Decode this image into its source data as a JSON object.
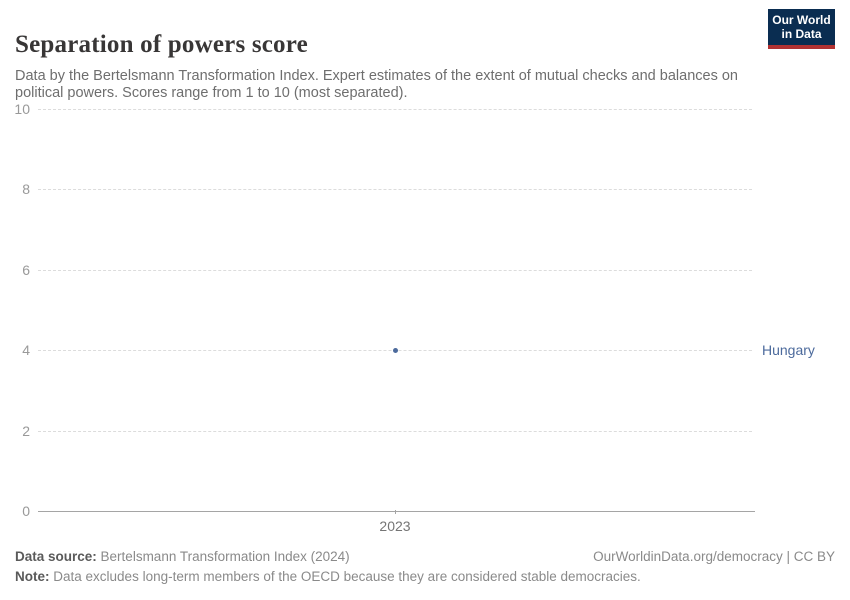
{
  "colors": {
    "accent": "#4c6a9c",
    "grid": "#dcdcdc",
    "axis": "#a5a5a5",
    "ytick_text": "#999999",
    "xtick_text": "#757575",
    "logo_bg": "#0a2d51",
    "logo_stripe": "#b13232"
  },
  "header": {
    "title": "Separation of powers score",
    "subtitle": "Data by the Bertelsmann Transformation Index. Expert estimates of the extent of mutual checks and balances on political powers. Scores range from 1 to 10 (most separated).",
    "logo": {
      "line1": "Our World",
      "line2": "in Data"
    }
  },
  "chart_data": {
    "type": "scatter",
    "title": "Separation of powers score",
    "xlabel": "",
    "ylabel": "",
    "ylim": [
      0,
      10
    ],
    "yticks": [
      0,
      2,
      4,
      6,
      8,
      10
    ],
    "xticks": [
      {
        "label": "2023",
        "frac": 0.5
      }
    ],
    "grid": "horizontal-dashed",
    "legend": "entity-label-right",
    "series": [
      {
        "name": "Hungary",
        "color": "#4c6a9c",
        "points": [
          {
            "x": 2023,
            "y": 4,
            "frac": 0.5
          }
        ]
      }
    ]
  },
  "footer": {
    "datasource_label": "Data source:",
    "datasource_value": "Bertelsmann Transformation Index (2024)",
    "rights": "OurWorldinData.org/democracy | CC BY",
    "note_label": "Note:",
    "note_value": "Data excludes long-term members of the OECD because they are considered stable democracies."
  }
}
